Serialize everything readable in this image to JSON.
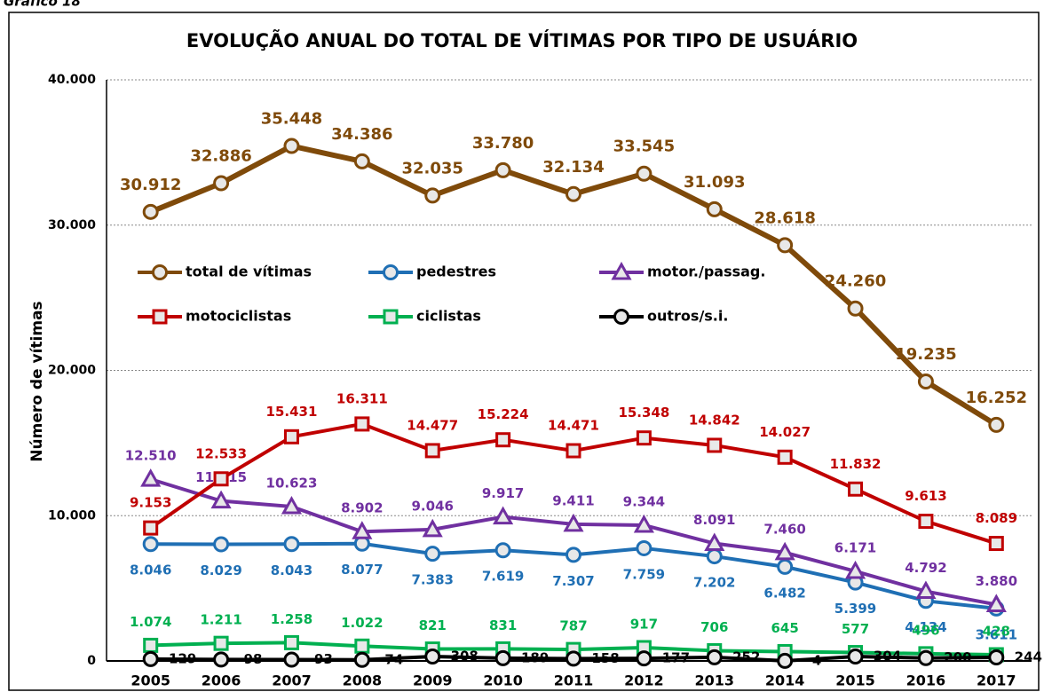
{
  "caption": "Gráfico 18",
  "chart_data": {
    "type": "line",
    "title": "EVOLUÇÃO ANUAL DO TOTAL DE VÍTIMAS POR TIPO DE USUÁRIO",
    "y_label": "Número de vítimas",
    "categories": [
      "2005",
      "2006",
      "2007",
      "2008",
      "2009",
      "2010",
      "2011",
      "2012",
      "2013",
      "2014",
      "2015",
      "2016",
      "2017"
    ],
    "ylim": [
      0,
      40000
    ],
    "yticks": [
      0,
      {
        "value": 10000,
        "label": "10.000"
      },
      {
        "value": 20000,
        "label": "20.000"
      },
      {
        "value": 30000,
        "label": "30.000"
      },
      {
        "value": 40000,
        "label": "40.000"
      }
    ],
    "grid": true,
    "series": [
      {
        "name": "total de vítimas",
        "color": "#7f4a0a",
        "marker": "circle",
        "values": [
          30912,
          32886,
          35448,
          34386,
          32035,
          33780,
          32134,
          33545,
          31093,
          28618,
          24260,
          19235,
          16252
        ],
        "value_labels": [
          "30.912",
          "32.886",
          "35.448",
          "34.386",
          "32.035",
          "33.780",
          "32.134",
          "33.545",
          "31.093",
          "28.618",
          "24.260",
          "19.235",
          "16.252"
        ]
      },
      {
        "name": "pedestres",
        "color": "#1f6fb4",
        "marker": "circle",
        "values": [
          8046,
          8029,
          8043,
          8077,
          7383,
          7619,
          7307,
          7759,
          7202,
          6482,
          5399,
          4134,
          3611
        ],
        "value_labels": [
          "8.046",
          "8.029",
          "8.043",
          "8.077",
          "7.383",
          "7.619",
          "7.307",
          "7.759",
          "7.202",
          "6.482",
          "5.399",
          "4.134",
          "3.611"
        ]
      },
      {
        "name": "motor./passag.",
        "color": "#7030a0",
        "marker": "triangle",
        "values": [
          12510,
          11015,
          10623,
          8902,
          9046,
          9917,
          9411,
          9344,
          8091,
          7460,
          6171,
          4792,
          3880
        ],
        "value_labels": [
          "12.510",
          "11.015",
          "10.623",
          "8.902",
          "9.046",
          "9.917",
          "9.411",
          "9.344",
          "8.091",
          "7.460",
          "6.171",
          "4.792",
          "3.880"
        ]
      },
      {
        "name": "motociclistas",
        "color": "#c00000",
        "marker": "square",
        "values": [
          9153,
          12533,
          15431,
          16311,
          14477,
          15224,
          14471,
          15348,
          14842,
          14027,
          11832,
          9613,
          8089
        ],
        "value_labels": [
          "9.153",
          "12.533",
          "15.431",
          "16.311",
          "14.477",
          "15.224",
          "14.471",
          "15.348",
          "14.842",
          "14.027",
          "11.832",
          "9.613",
          "8.089"
        ]
      },
      {
        "name": "ciclistas",
        "color": "#00b050",
        "marker": "square",
        "values": [
          1074,
          1211,
          1258,
          1022,
          821,
          831,
          787,
          917,
          706,
          645,
          577,
          496,
          428
        ],
        "value_labels": [
          "1.074",
          "1.211",
          "1.258",
          "1.022",
          "821",
          "831",
          "787",
          "917",
          "706",
          "645",
          "577",
          "496",
          "428"
        ]
      },
      {
        "name": "outros/s.i.",
        "color": "#000000",
        "marker": "circle",
        "values": [
          129,
          98,
          93,
          74,
          308,
          189,
          158,
          177,
          252,
          4,
          304,
          200,
          244
        ]
      }
    ]
  }
}
